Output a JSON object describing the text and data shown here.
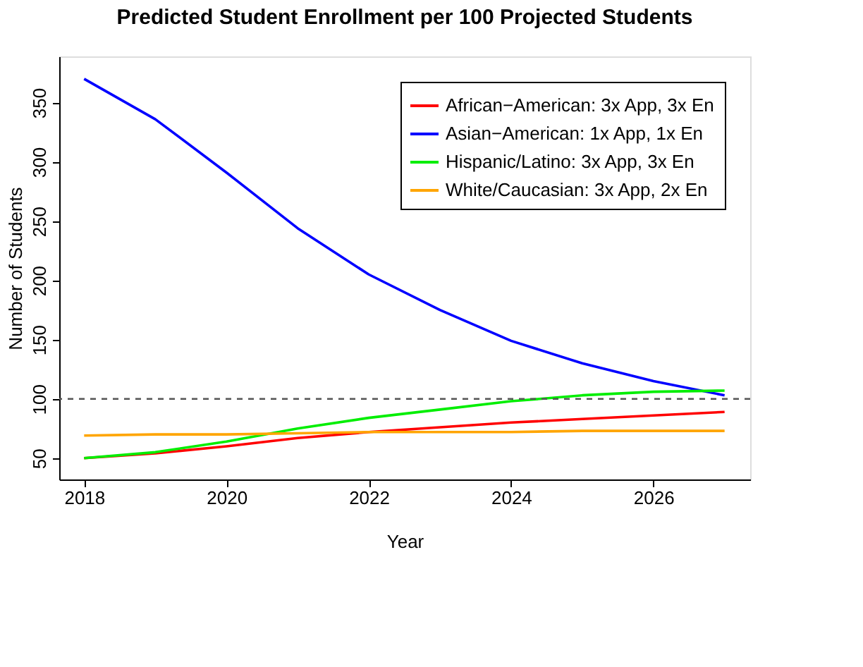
{
  "chart_data": {
    "type": "line",
    "title": "Predicted Student Enrollment per 100 Projected Students",
    "xlabel": "Year",
    "ylabel": "Number of Students",
    "x": [
      2018,
      2019,
      2020,
      2021,
      2022,
      2023,
      2024,
      2025,
      2026,
      2027
    ],
    "series": [
      {
        "name": "African−American: 3x App, 3x En",
        "color": "#ff0000",
        "values": [
          50,
          54,
          60,
          67,
          72,
          76,
          80,
          83,
          86,
          89
        ]
      },
      {
        "name": "Asian−American:   1x App, 1x En",
        "color": "#0000ff",
        "values": [
          370,
          336,
          291,
          244,
          205,
          175,
          149,
          130,
          115,
          103
        ]
      },
      {
        "name": "Hispanic/Latino:    3x App, 3x En",
        "color": "#00ee00",
        "values": [
          50,
          55,
          64,
          75,
          84,
          91,
          98,
          103,
          106,
          107
        ]
      },
      {
        "name": "White/Caucasian: 3x App, 2x En",
        "color": "#ffa500",
        "values": [
          69,
          70,
          70,
          71,
          72,
          72,
          72,
          73,
          73,
          73
        ]
      }
    ],
    "xlim": [
      2017.65,
      2027.36
    ],
    "ylim": [
      32,
      389
    ],
    "xticks": [
      2018,
      2020,
      2022,
      2024,
      2026
    ],
    "yticks": [
      50,
      100,
      150,
      200,
      250,
      300,
      350
    ],
    "ref_lines": [
      {
        "axis": "y",
        "value": 100,
        "color": "#555555",
        "line_style": "dashed"
      }
    ],
    "grid": false,
    "legend": "top right",
    "line_style": "solid",
    "marker": "none"
  }
}
